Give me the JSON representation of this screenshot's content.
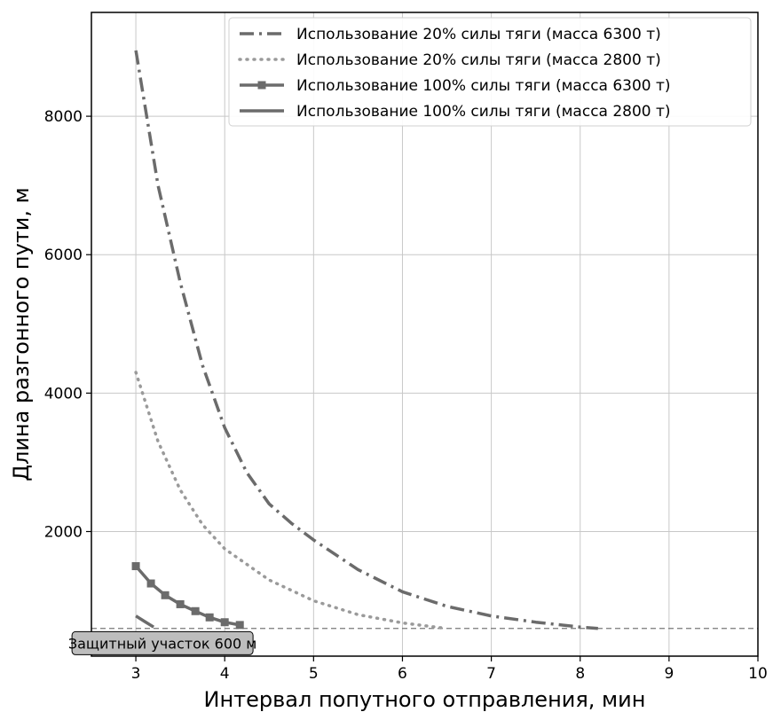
{
  "chart_data": {
    "type": "line",
    "xlabel": "Интервал попутного отправления, мин",
    "ylabel": "Длина разгонного пути, м",
    "xlim": [
      2.5,
      10
    ],
    "ylim": [
      200,
      9500
    ],
    "xticks": [
      3,
      4,
      5,
      6,
      7,
      8,
      9,
      10
    ],
    "yticks": [
      2000,
      4000,
      6000,
      8000
    ],
    "grid": true,
    "legend_position": "top-right",
    "series": [
      {
        "name": "Использование 20% силы тяги (масса 6300 т)",
        "style": "dashdot",
        "color": "#6b6b6b",
        "x": [
          3.0,
          3.25,
          3.5,
          3.75,
          4.0,
          4.25,
          4.5,
          4.75,
          5.0,
          5.5,
          6.0,
          6.5,
          7.0,
          7.5,
          8.0,
          8.2
        ],
        "y": [
          8950,
          7000,
          5600,
          4400,
          3500,
          2850,
          2400,
          2120,
          1880,
          1450,
          1130,
          920,
          780,
          690,
          620,
          600
        ]
      },
      {
        "name": "Использование 20% силы тяги (масса 2800 т)",
        "style": "dotted",
        "color": "#9a9a9a",
        "x": [
          3.0,
          3.25,
          3.5,
          3.75,
          4.0,
          4.5,
          5.0,
          5.5,
          6.0,
          6.5
        ],
        "y": [
          4300,
          3300,
          2600,
          2100,
          1750,
          1300,
          1000,
          800,
          680,
          600
        ]
      },
      {
        "name": "Использование 100% силы тяги (масса 6300 т)",
        "style": "solid-square",
        "color": "#6b6b6b",
        "x": [
          3.0,
          3.17,
          3.33,
          3.5,
          3.67,
          3.83,
          4.0,
          4.17
        ],
        "y": [
          1500,
          1250,
          1080,
          950,
          850,
          760,
          690,
          650
        ]
      },
      {
        "name": "Использование 100% силы тяги (масса 2800 т)",
        "style": "solid",
        "color": "#6b6b6b",
        "x": [
          3.0,
          3.1,
          3.2
        ],
        "y": [
          780,
          700,
          620
        ]
      }
    ],
    "reference_line": {
      "y": 600,
      "style": "dashed",
      "color": "#777777"
    },
    "annotation": {
      "text": "Защитный участок 600 м",
      "x": 3.3,
      "y": 400
    }
  }
}
